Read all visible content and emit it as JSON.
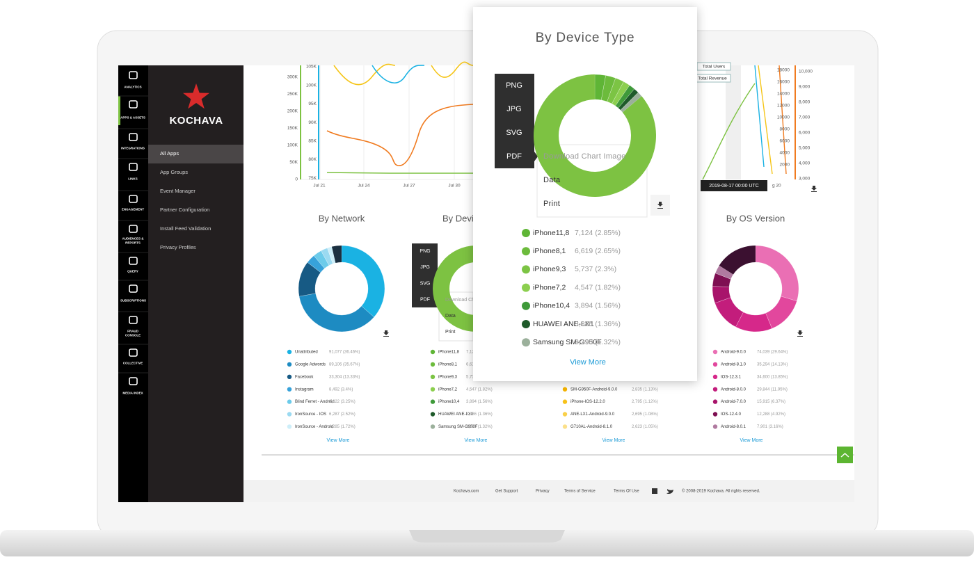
{
  "sidebar": {
    "items": [
      "ANALYTICS",
      "APPS & ASSETS",
      "INTEGRATIONS",
      "LINKS",
      "ENGAGEMENT",
      "AUDIENCES & REPORTS",
      "QUERY",
      "SUBSCRIPTIONS",
      "FRAUD CONSOLE",
      "COLLECTIVE",
      "MEDIA INDEX"
    ]
  },
  "brand": "KOCHAVA",
  "nav": [
    "All Apps",
    "App Groups",
    "Event Manager",
    "Partner Configuration",
    "Install Feed Validation",
    "Privacy Profiles"
  ],
  "line_chart": {
    "left_axis": [
      "300K",
      "250K",
      "200K",
      "150K",
      "100K",
      "50K",
      "0"
    ],
    "left_axis2": [
      "105K",
      "100K",
      "95K",
      "90K",
      "85K",
      "80K",
      "75K"
    ],
    "xticks": [
      "Jul 21",
      "Jul 24",
      "Jul 27",
      "Jul 30"
    ],
    "right_axis": [
      "18000",
      "16000",
      "14000",
      "12000",
      "10000",
      "8000",
      "6000",
      "4000",
      "2000"
    ],
    "right_axis2": [
      "10,000",
      "9,000",
      "8,000",
      "7,000",
      "6,000",
      "5,000",
      "4,000",
      "3,000"
    ],
    "legend": [
      "Total Users",
      "Total Revenue"
    ],
    "tooltip": "2019-08-17 00:00 UTC",
    "xtick_right": "g 20"
  },
  "network": {
    "title": "By Network",
    "items": [
      {
        "name": "Unattributed",
        "label": "91,077 (36.46%)",
        "share": 36.46,
        "color": "#1ab2e3"
      },
      {
        "name": "Google Adwords",
        "label": "89,106 (35.67%)",
        "share": 35.67,
        "color": "#1d8bc2"
      },
      {
        "name": "Facebook",
        "label": "33,304 (13.33%)",
        "share": 13.33,
        "color": "#175a84"
      },
      {
        "name": "Instagram",
        "label": "8,492 (3.4%)",
        "share": 3.4,
        "color": "#37a2da"
      },
      {
        "name": "Blind Ferret - Android",
        "label": "8,122 (3.25%)",
        "share": 3.25,
        "color": "#6ccbea"
      },
      {
        "name": "IronSource - IOS",
        "label": "6,287 (2.52%)",
        "share": 2.52,
        "color": "#9bdaf1"
      },
      {
        "name": "IronSource - Android",
        "label": "4,285 (1.72%)",
        "share": 1.72,
        "color": "#cdeef9"
      }
    ],
    "view_more": "View More"
  },
  "device_os": {
    "items": [
      {
        "name": "SM-G950F-Android-9.0.0",
        "label": "2,835 (1.13%)",
        "color": "#f5b400"
      },
      {
        "name": "iPhone-IOS-12.2.0",
        "label": "2,795 (1.12%)",
        "color": "#f7c21a"
      },
      {
        "name": "ANE-LX1-Android-9.0.0",
        "label": "2,695 (1.08%)",
        "color": "#f9d04a"
      },
      {
        "name": "G710AL-Android-8.1.0",
        "label": "2,623 (1.05%)",
        "color": "#fbe08a"
      }
    ],
    "view_more": "View More"
  },
  "os_version": {
    "title": "By OS Version",
    "items": [
      {
        "name": "Android-9.0.0",
        "label": "74,039 (29.64%)",
        "share": 29.64,
        "color": "#ea6fb4"
      },
      {
        "name": "Android-8.1.0",
        "label": "35,294 (14.13%)",
        "share": 14.13,
        "color": "#e2479d"
      },
      {
        "name": "IOS-12.3.1",
        "label": "34,600 (13.85%)",
        "share": 13.85,
        "color": "#d6288a"
      },
      {
        "name": "Android-8.0.0",
        "label": "29,844 (11.95%)",
        "share": 11.95,
        "color": "#c31d7c"
      },
      {
        "name": "Android-7.0.0",
        "label": "15,915 (6.37%)",
        "share": 6.37,
        "color": "#a8146b"
      },
      {
        "name": "IOS-12.4.0",
        "label": "12,288 (4.92%)",
        "share": 4.92,
        "color": "#7e0f52"
      },
      {
        "name": "Android-8.0.1",
        "label": "7,901 (3.16%)",
        "share": 3.16,
        "color": "#b07aa0"
      }
    ],
    "view_more": "View More"
  },
  "popup": {
    "title": "By Device Type",
    "items": [
      {
        "name": "iPhone11,8",
        "label": "7,124 (2.85%)",
        "share": 2.85,
        "color": "#5fb536"
      },
      {
        "name": "iPhone8,1",
        "label": "6,619 (2.65%)",
        "share": 2.65,
        "color": "#6cbb3c"
      },
      {
        "name": "iPhone9,3",
        "label": "5,737 (2.3%)",
        "share": 2.3,
        "color": "#7cc444"
      },
      {
        "name": "iPhone7,2",
        "label": "4,547 (1.82%)",
        "share": 1.82,
        "color": "#8ccf4f"
      },
      {
        "name": "iPhone10,4",
        "label": "3,894 (1.56%)",
        "share": 1.56,
        "color": "#3f9a3a"
      },
      {
        "name": "HUAWEI ANE-LX1",
        "label": "3,386 (1.36%)",
        "share": 1.36,
        "color": "#1f5a2a"
      },
      {
        "name": "Samsung SM-G950F",
        "label": "3,290 (1.32%)",
        "share": 1.32,
        "color": "#9bb09b"
      }
    ],
    "view_more": "View More",
    "menu": {
      "formats": [
        "PNG",
        "JPG",
        "SVG",
        "PDF"
      ],
      "options": [
        "Download Chart Image",
        "Data",
        "Print"
      ]
    }
  },
  "footer": {
    "links": [
      "Kochava.com",
      "Get Support",
      "Privacy",
      "Terms of Service",
      "Terms Of Use"
    ],
    "copyright": "© 2008-2019 Kochava. All rights reserved."
  }
}
